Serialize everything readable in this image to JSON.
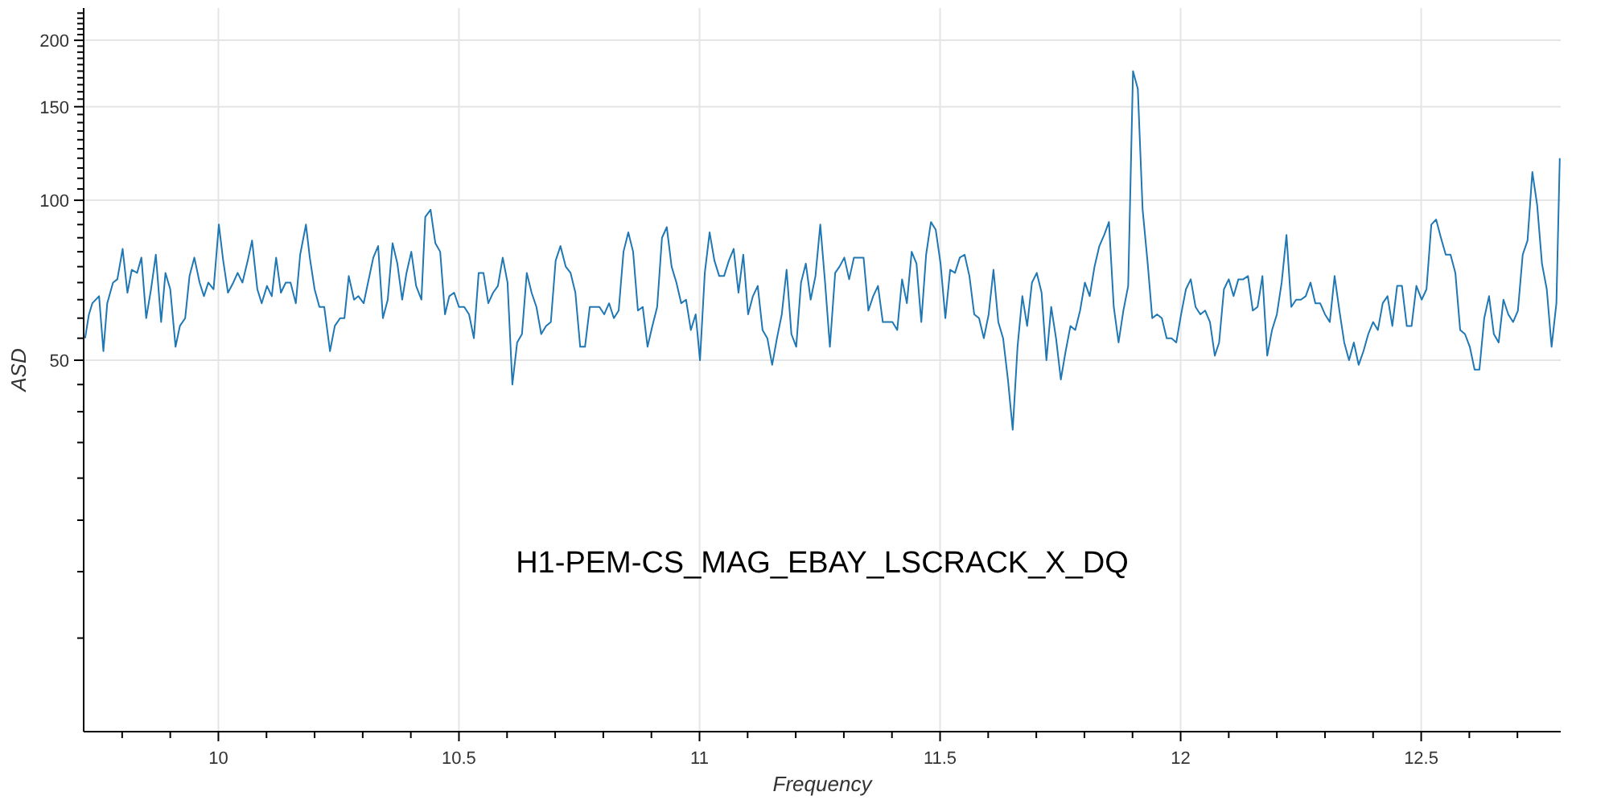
{
  "chart_data": {
    "type": "line",
    "xlabel": "Frequency",
    "ylabel": "ASD",
    "annotations": [
      "H1-PEM-CS_MAG_EBAY_LSCRACK_X_DQ"
    ],
    "log": "y",
    "grid": true,
    "xlim": [
      9.72,
      12.79
    ],
    "ylim": [
      10,
      230
    ],
    "xticks": [
      {
        "value": 9.8,
        "label": null
      },
      {
        "value": 9.9,
        "label": null
      },
      10,
      {
        "value": 10.1,
        "label": null
      },
      {
        "value": 10.2,
        "label": null
      },
      {
        "value": 10.3,
        "label": null
      },
      {
        "value": 10.4,
        "label": null
      },
      10.5,
      {
        "value": 10.6,
        "label": null
      },
      {
        "value": 10.7,
        "label": null
      },
      {
        "value": 10.8,
        "label": null
      },
      {
        "value": 10.9,
        "label": null
      },
      11,
      {
        "value": 11.1,
        "label": null
      },
      {
        "value": 11.2,
        "label": null
      },
      {
        "value": 11.3,
        "label": null
      },
      {
        "value": 11.4,
        "label": null
      },
      11.5,
      {
        "value": 11.6,
        "label": null
      },
      {
        "value": 11.7,
        "label": null
      },
      {
        "value": 11.8,
        "label": null
      },
      {
        "value": 11.9,
        "label": null
      },
      12,
      {
        "value": 12.1,
        "label": null
      },
      {
        "value": 12.2,
        "label": null
      },
      {
        "value": 12.3,
        "label": null
      },
      {
        "value": 12.4,
        "label": null
      },
      12.5,
      {
        "value": 12.6,
        "label": null
      },
      {
        "value": 12.7,
        "label": null
      }
    ],
    "yticks": [
      {
        "value": 15,
        "label": null
      },
      {
        "value": 20,
        "label": null
      },
      {
        "value": 25,
        "label": null
      },
      {
        "value": 30,
        "label": null
      },
      {
        "value": 35,
        "label": null
      },
      {
        "value": 40,
        "label": null
      },
      {
        "value": 45,
        "label": null
      },
      50,
      {
        "value": 55,
        "label": null
      },
      {
        "value": 60,
        "label": null
      },
      {
        "value": 65,
        "label": null
      },
      {
        "value": 70,
        "label": null
      },
      {
        "value": 75,
        "label": null
      },
      {
        "value": 80,
        "label": null
      },
      {
        "value": 85,
        "label": null
      },
      {
        "value": 90,
        "label": null
      },
      {
        "value": 95,
        "label": null
      },
      100,
      {
        "value": 105,
        "label": null
      },
      {
        "value": 110,
        "label": null
      },
      {
        "value": 115,
        "label": null
      },
      {
        "value": 120,
        "label": null
      },
      {
        "value": 125,
        "label": null
      },
      {
        "value": 130,
        "label": null
      },
      {
        "value": 135,
        "label": null
      },
      {
        "value": 140,
        "label": null
      },
      {
        "value": 145,
        "label": null
      },
      150,
      {
        "value": 155,
        "label": null
      },
      {
        "value": 160,
        "label": null
      },
      {
        "value": 165,
        "label": null
      },
      {
        "value": 170,
        "label": null
      },
      {
        "value": 175,
        "label": null
      },
      {
        "value": 180,
        "label": null
      },
      {
        "value": 185,
        "label": null
      },
      {
        "value": 190,
        "label": null
      },
      {
        "value": 195,
        "label": null
      },
      200,
      {
        "value": 205,
        "label": null
      },
      {
        "value": 210,
        "label": null
      },
      {
        "value": 215,
        "label": null
      },
      {
        "value": 220,
        "label": null
      },
      {
        "value": 225,
        "label": null
      }
    ],
    "x": [
      9.723,
      9.731,
      9.738,
      9.752,
      9.761,
      9.769,
      9.781,
      9.79,
      9.801,
      9.811,
      9.82,
      9.831,
      9.84,
      9.85,
      9.86,
      9.87,
      9.881,
      9.89,
      9.9,
      9.911,
      9.92,
      9.931,
      9.94,
      9.95,
      9.961,
      9.97,
      9.979,
      9.99,
      10.001,
      10.01,
      10.02,
      10.031,
      10.04,
      10.05,
      10.061,
      10.07,
      10.081,
      10.09,
      10.101,
      10.111,
      10.12,
      10.13,
      10.14,
      10.15,
      10.161,
      10.17,
      10.182,
      10.19,
      10.2,
      10.21,
      10.22,
      10.232,
      10.242,
      10.253,
      10.262,
      10.271,
      10.282,
      10.291,
      10.302,
      10.311,
      10.322,
      10.332,
      10.342,
      10.352,
      10.362,
      10.372,
      10.382,
      10.391,
      10.401,
      10.411,
      10.422,
      10.43,
      10.441,
      10.451,
      10.461,
      10.471,
      10.48,
      10.49,
      10.5,
      10.509,
      10.511,
      10.521,
      10.531,
      10.541,
      10.551,
      10.561,
      10.571,
      10.581,
      10.591,
      10.601,
      10.611,
      10.621,
      10.631,
      10.641,
      10.651,
      10.661,
      10.671,
      10.681,
      10.691,
      10.701,
      10.711,
      10.722,
      10.732,
      10.742,
      10.752,
      10.762,
      10.772,
      10.782,
      10.792,
      10.802,
      10.812,
      10.822,
      10.832,
      10.842,
      10.852,
      10.862,
      10.872,
      10.882,
      10.892,
      10.902,
      10.912,
      10.922,
      10.932,
      10.942,
      10.952,
      10.962,
      10.972,
      10.982,
      10.992,
      11.001,
      11.011,
      11.021,
      11.031,
      11.041,
      11.051,
      11.061,
      11.071,
      11.081,
      11.091,
      11.101,
      11.111,
      11.121,
      11.131,
      11.141,
      11.151,
      11.161,
      11.171,
      11.181,
      11.191,
      11.201,
      11.211,
      11.221,
      11.231,
      11.241,
      11.251,
      11.261,
      11.271,
      11.282,
      11.291,
      11.301,
      11.311,
      11.321,
      11.331,
      11.341,
      11.351,
      11.361,
      11.371,
      11.381,
      11.391,
      11.401,
      11.411,
      11.421,
      11.431,
      11.441,
      11.451,
      11.461,
      11.471,
      11.481,
      11.491,
      11.501,
      11.511,
      11.521,
      11.531,
      11.541,
      11.551,
      11.561,
      11.571,
      11.581,
      11.591,
      11.601,
      11.611,
      11.621,
      11.631,
      11.641,
      11.651,
      11.661,
      11.671,
      11.681,
      11.691,
      11.701,
      11.711,
      11.721,
      11.731,
      11.741,
      11.751,
      11.761,
      11.771,
      11.781,
      11.791,
      11.801,
      11.811,
      11.821,
      11.831,
      11.841,
      11.851,
      11.861,
      11.871,
      11.881,
      11.891,
      11.901,
      11.911,
      11.921,
      11.931,
      11.941,
      11.951,
      11.961,
      11.971,
      11.981,
      11.991,
      12.001,
      12.011,
      12.021,
      12.031,
      12.041,
      12.051,
      12.061,
      12.071,
      12.08,
      12.09,
      12.1,
      12.11,
      12.12,
      12.13,
      12.14,
      12.15,
      12.16,
      12.17,
      12.18,
      12.19,
      12.2,
      12.21,
      12.22,
      12.23,
      12.24,
      12.25,
      12.26,
      12.27,
      12.28,
      12.29,
      12.3,
      12.31,
      12.32,
      12.33,
      12.34,
      12.35,
      12.36,
      12.37,
      12.38,
      12.39,
      12.4,
      12.41,
      12.42,
      12.43,
      12.44,
      12.45,
      12.46,
      12.47,
      12.48,
      12.49,
      12.501,
      12.511,
      12.521,
      12.531,
      12.541,
      12.551,
      12.561,
      12.571,
      12.581,
      12.591,
      12.601,
      12.611,
      12.621,
      12.631,
      12.641,
      12.651,
      12.661,
      12.671,
      12.681,
      12.691,
      12.701,
      12.711,
      12.721,
      12.731,
      12.741,
      12.751,
      12.761,
      12.771,
      12.781,
      12.788
    ],
    "series": [
      {
        "color": "#1f77b4",
        "values": [
          55,
          61,
          64,
          66,
          52,
          64,
          70,
          71,
          81,
          67,
          74,
          73,
          78,
          60,
          68,
          79,
          59,
          73,
          68,
          53,
          58,
          60,
          72,
          78,
          70,
          66,
          70,
          68,
          90,
          77,
          67,
          70,
          73,
          70,
          77,
          84,
          68,
          64,
          69,
          66,
          78,
          67,
          70,
          70,
          64,
          79,
          90,
          78,
          68,
          63,
          63,
          52,
          58,
          60,
          60,
          72,
          65,
          66,
          64,
          70,
          78,
          82,
          60,
          65,
          83,
          76,
          65,
          73,
          80,
          69,
          65,
          93,
          96,
          83,
          80,
          61,
          66,
          67,
          63,
          63,
          63,
          61,
          55,
          73,
          73,
          64,
          67,
          69,
          78,
          70,
          45,
          54,
          56,
          73,
          67,
          63,
          56,
          58,
          59,
          77,
          82,
          75,
          73,
          67,
          53,
          53,
          63,
          63,
          63,
          61,
          64,
          60,
          62,
          80,
          87,
          80,
          62,
          63,
          53,
          58,
          63,
          85,
          89,
          75,
          70,
          64,
          65,
          57,
          61,
          50,
          73,
          87,
          77,
          72,
          72,
          77,
          81,
          67,
          79,
          61,
          66,
          69,
          57,
          55,
          49,
          55,
          61,
          74,
          56,
          53,
          70,
          76,
          65,
          72,
          90,
          70,
          53,
          73,
          75,
          78,
          71,
          78,
          78,
          78,
          62,
          66,
          69,
          59,
          59,
          59,
          57,
          71,
          64,
          80,
          76,
          59,
          79,
          91,
          88,
          76,
          60,
          74,
          73,
          78,
          79,
          72,
          61,
          60,
          55,
          61,
          74,
          59,
          55,
          46,
          37,
          53,
          66,
          58,
          70,
          73,
          67,
          50,
          63,
          55,
          46,
          52,
          58,
          57,
          62,
          70,
          66,
          75,
          82,
          86,
          91,
          63,
          54,
          62,
          69,
          175,
          162,
          96,
          77,
          60,
          61,
          60,
          55,
          55,
          54,
          61,
          68,
          71,
          63,
          61,
          62,
          59,
          51,
          54,
          68,
          71,
          66,
          71,
          71,
          72,
          62,
          63,
          72,
          51,
          57,
          61,
          70,
          86,
          63,
          65,
          65,
          66,
          70,
          64,
          64,
          61,
          59,
          72,
          62,
          54,
          50,
          54,
          49,
          52,
          56,
          59,
          57,
          64,
          66,
          58,
          69,
          69,
          58,
          58,
          69,
          65,
          68,
          90,
          92,
          85,
          79,
          79,
          73,
          57,
          56,
          53,
          48,
          48,
          60,
          66,
          56,
          54,
          65,
          61,
          59,
          62,
          79,
          84,
          113,
          98,
          76,
          68,
          53,
          64,
          120
        ]
      }
    ]
  }
}
